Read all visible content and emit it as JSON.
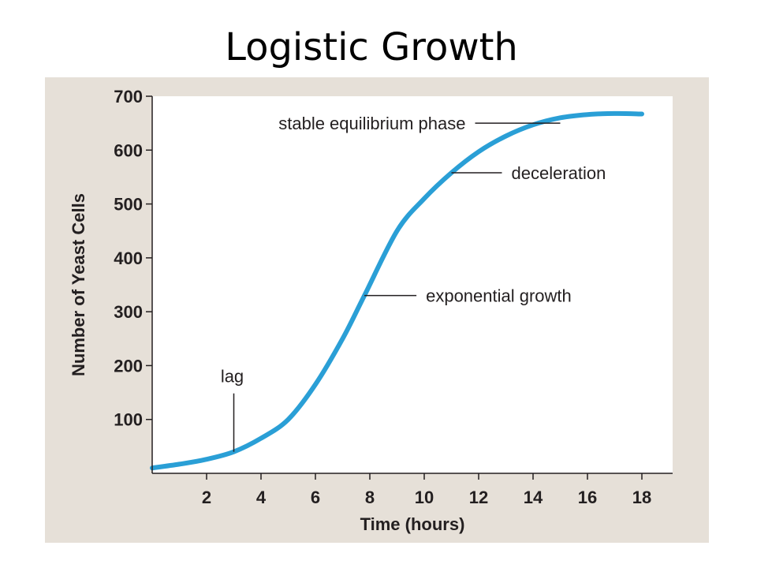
{
  "slide": {
    "title": "Logistic Growth"
  },
  "chart_data": {
    "type": "line",
    "xlabel": "Time (hours)",
    "ylabel": "Number of Yeast Cells",
    "xlim": [
      0,
      19
    ],
    "ylim": [
      0,
      700
    ],
    "xticks": [
      2,
      4,
      6,
      8,
      10,
      12,
      14,
      16,
      18
    ],
    "yticks": [
      100,
      200,
      300,
      400,
      500,
      600,
      700
    ],
    "grid": false,
    "series": [
      {
        "color": "#2a9fd6",
        "x": [
          0,
          1,
          2,
          3,
          4,
          5,
          6,
          7,
          7.8,
          9,
          10,
          11,
          12,
          13,
          14,
          15,
          16,
          17,
          18
        ],
        "y": [
          10,
          17,
          26,
          40,
          65,
          100,
          165,
          250,
          330,
          450,
          510,
          558,
          597,
          626,
          647,
          660,
          666,
          668,
          667
        ]
      }
    ],
    "annotations": [
      {
        "text": "stable equilibrium phase",
        "x": 15,
        "y": 650
      },
      {
        "text": "deceleration",
        "x": 11,
        "y": 558
      },
      {
        "text": "exponential growth",
        "x": 7.8,
        "y": 330
      },
      {
        "text": "lag",
        "x": 3,
        "y": 40
      }
    ]
  }
}
